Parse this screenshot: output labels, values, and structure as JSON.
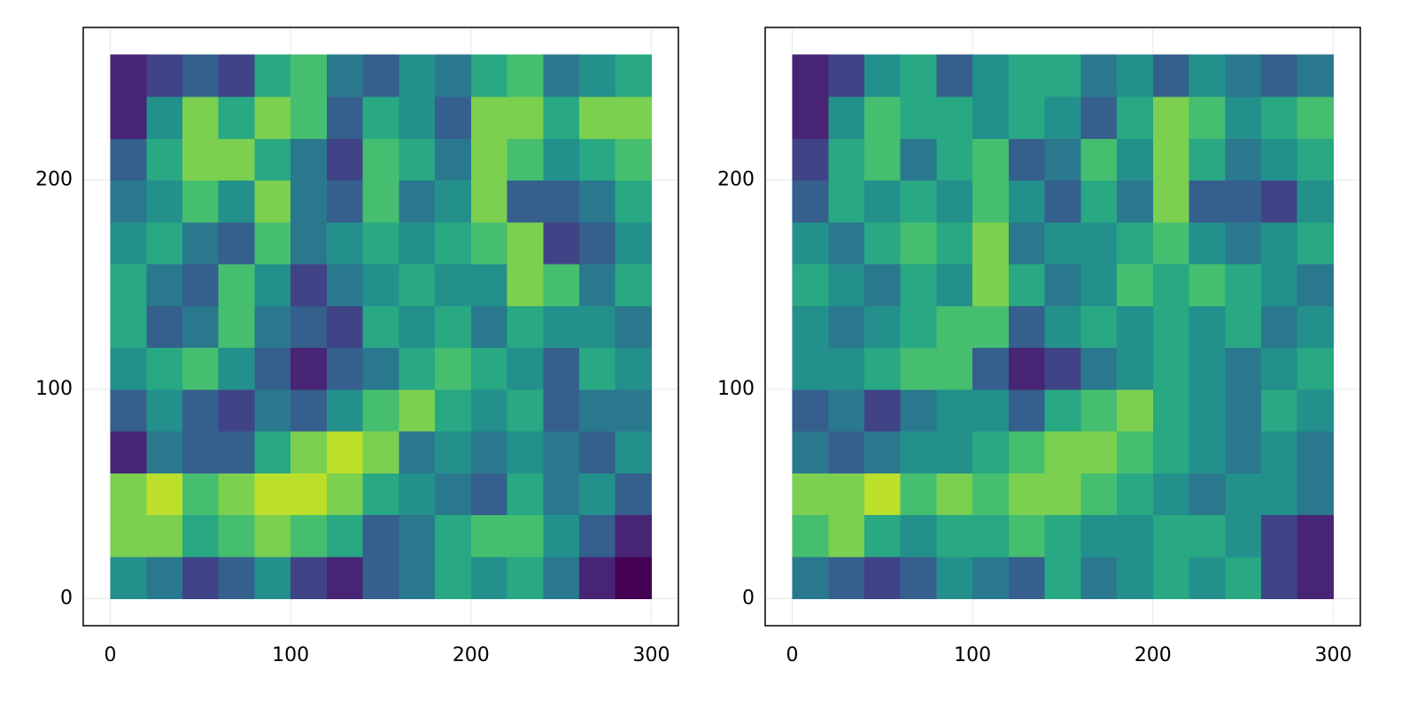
{
  "chart_data": [
    {
      "type": "heatmap",
      "colormap": "viridis",
      "grid": true,
      "xlim": [
        -15,
        315
      ],
      "ylim": [
        -13,
        273
      ],
      "xticks": [
        0,
        100,
        200,
        300
      ],
      "yticks": [
        0,
        100,
        200
      ],
      "x_edges": [
        0,
        20,
        40,
        60,
        80,
        100,
        120,
        140,
        160,
        180,
        200,
        220,
        240,
        260,
        280,
        300
      ],
      "y_edges": [
        0,
        20,
        40,
        60,
        80,
        100,
        120,
        140,
        160,
        180,
        200,
        220,
        240,
        260
      ],
      "z": [
        [
          0.5,
          0.4,
          0.2,
          0.3,
          0.5,
          0.2,
          0.1,
          0.3,
          0.4,
          0.6,
          0.5,
          0.6,
          0.4,
          0.1,
          0.0
        ],
        [
          0.8,
          0.8,
          0.6,
          0.7,
          0.8,
          0.7,
          0.6,
          0.3,
          0.4,
          0.6,
          0.7,
          0.7,
          0.5,
          0.3,
          0.1
        ],
        [
          0.8,
          0.9,
          0.7,
          0.8,
          0.9,
          0.9,
          0.8,
          0.6,
          0.5,
          0.4,
          0.3,
          0.6,
          0.4,
          0.5,
          0.3
        ],
        [
          0.1,
          0.4,
          0.3,
          0.3,
          0.6,
          0.8,
          0.9,
          0.8,
          0.4,
          0.5,
          0.4,
          0.5,
          0.4,
          0.3,
          0.5
        ],
        [
          0.3,
          0.5,
          0.3,
          0.2,
          0.4,
          0.3,
          0.5,
          0.7,
          0.8,
          0.6,
          0.5,
          0.6,
          0.3,
          0.4,
          0.4
        ],
        [
          0.5,
          0.6,
          0.7,
          0.5,
          0.3,
          0.1,
          0.3,
          0.4,
          0.6,
          0.7,
          0.6,
          0.5,
          0.3,
          0.6,
          0.5
        ],
        [
          0.6,
          0.3,
          0.4,
          0.7,
          0.4,
          0.3,
          0.2,
          0.6,
          0.5,
          0.6,
          0.4,
          0.6,
          0.5,
          0.5,
          0.4
        ],
        [
          0.6,
          0.4,
          0.3,
          0.7,
          0.5,
          0.2,
          0.4,
          0.5,
          0.6,
          0.5,
          0.5,
          0.8,
          0.7,
          0.4,
          0.6
        ],
        [
          0.5,
          0.6,
          0.4,
          0.3,
          0.7,
          0.4,
          0.5,
          0.6,
          0.5,
          0.6,
          0.7,
          0.8,
          0.2,
          0.3,
          0.5
        ],
        [
          0.4,
          0.5,
          0.7,
          0.5,
          0.8,
          0.4,
          0.3,
          0.7,
          0.4,
          0.5,
          0.8,
          0.3,
          0.3,
          0.4,
          0.6
        ],
        [
          0.3,
          0.6,
          0.8,
          0.8,
          0.6,
          0.4,
          0.2,
          0.7,
          0.6,
          0.4,
          0.8,
          0.7,
          0.5,
          0.6,
          0.7
        ],
        [
          0.1,
          0.5,
          0.8,
          0.6,
          0.8,
          0.7,
          0.3,
          0.6,
          0.5,
          0.3,
          0.8,
          0.8,
          0.6,
          0.8,
          0.8
        ],
        [
          0.1,
          0.2,
          0.3,
          0.2,
          0.6,
          0.7,
          0.4,
          0.3,
          0.5,
          0.4,
          0.6,
          0.7,
          0.4,
          0.5,
          0.6
        ]
      ]
    },
    {
      "type": "heatmap",
      "colormap": "viridis",
      "grid": true,
      "xlim": [
        -15,
        315
      ],
      "ylim": [
        -13,
        273
      ],
      "xticks": [
        0,
        100,
        200,
        300
      ],
      "yticks": [
        0,
        100,
        200
      ],
      "x_edges": [
        0,
        20,
        40,
        60,
        80,
        100,
        120,
        140,
        160,
        180,
        200,
        220,
        240,
        260,
        280,
        300
      ],
      "y_edges": [
        0,
        20,
        40,
        60,
        80,
        100,
        120,
        140,
        160,
        180,
        200,
        220,
        240,
        260
      ],
      "z": [
        [
          0.4,
          0.3,
          0.2,
          0.3,
          0.5,
          0.4,
          0.3,
          0.6,
          0.4,
          0.5,
          0.6,
          0.5,
          0.6,
          0.2,
          0.1
        ],
        [
          0.7,
          0.8,
          0.6,
          0.5,
          0.6,
          0.6,
          0.7,
          0.6,
          0.5,
          0.5,
          0.6,
          0.6,
          0.5,
          0.2,
          0.1
        ],
        [
          0.8,
          0.8,
          0.9,
          0.7,
          0.8,
          0.7,
          0.8,
          0.8,
          0.7,
          0.6,
          0.5,
          0.4,
          0.5,
          0.5,
          0.4
        ],
        [
          0.4,
          0.3,
          0.4,
          0.5,
          0.5,
          0.6,
          0.7,
          0.8,
          0.8,
          0.7,
          0.6,
          0.5,
          0.4,
          0.5,
          0.4
        ],
        [
          0.3,
          0.4,
          0.2,
          0.4,
          0.5,
          0.5,
          0.3,
          0.6,
          0.7,
          0.8,
          0.6,
          0.5,
          0.4,
          0.6,
          0.5
        ],
        [
          0.5,
          0.5,
          0.6,
          0.7,
          0.7,
          0.3,
          0.1,
          0.2,
          0.4,
          0.5,
          0.6,
          0.5,
          0.4,
          0.5,
          0.6
        ],
        [
          0.5,
          0.4,
          0.5,
          0.6,
          0.7,
          0.7,
          0.3,
          0.5,
          0.6,
          0.5,
          0.6,
          0.5,
          0.6,
          0.4,
          0.5
        ],
        [
          0.6,
          0.5,
          0.4,
          0.6,
          0.5,
          0.8,
          0.6,
          0.4,
          0.5,
          0.7,
          0.6,
          0.7,
          0.6,
          0.5,
          0.4
        ],
        [
          0.5,
          0.4,
          0.6,
          0.7,
          0.6,
          0.8,
          0.4,
          0.5,
          0.5,
          0.6,
          0.7,
          0.5,
          0.4,
          0.5,
          0.6
        ],
        [
          0.3,
          0.6,
          0.5,
          0.6,
          0.5,
          0.7,
          0.5,
          0.3,
          0.6,
          0.4,
          0.8,
          0.3,
          0.3,
          0.2,
          0.5
        ],
        [
          0.2,
          0.6,
          0.7,
          0.4,
          0.6,
          0.7,
          0.3,
          0.4,
          0.7,
          0.5,
          0.8,
          0.6,
          0.4,
          0.5,
          0.6
        ],
        [
          0.1,
          0.5,
          0.7,
          0.6,
          0.6,
          0.5,
          0.6,
          0.5,
          0.3,
          0.6,
          0.8,
          0.7,
          0.5,
          0.6,
          0.7
        ],
        [
          0.1,
          0.2,
          0.5,
          0.6,
          0.3,
          0.5,
          0.6,
          0.6,
          0.4,
          0.5,
          0.3,
          0.5,
          0.4,
          0.3,
          0.4
        ]
      ]
    }
  ]
}
